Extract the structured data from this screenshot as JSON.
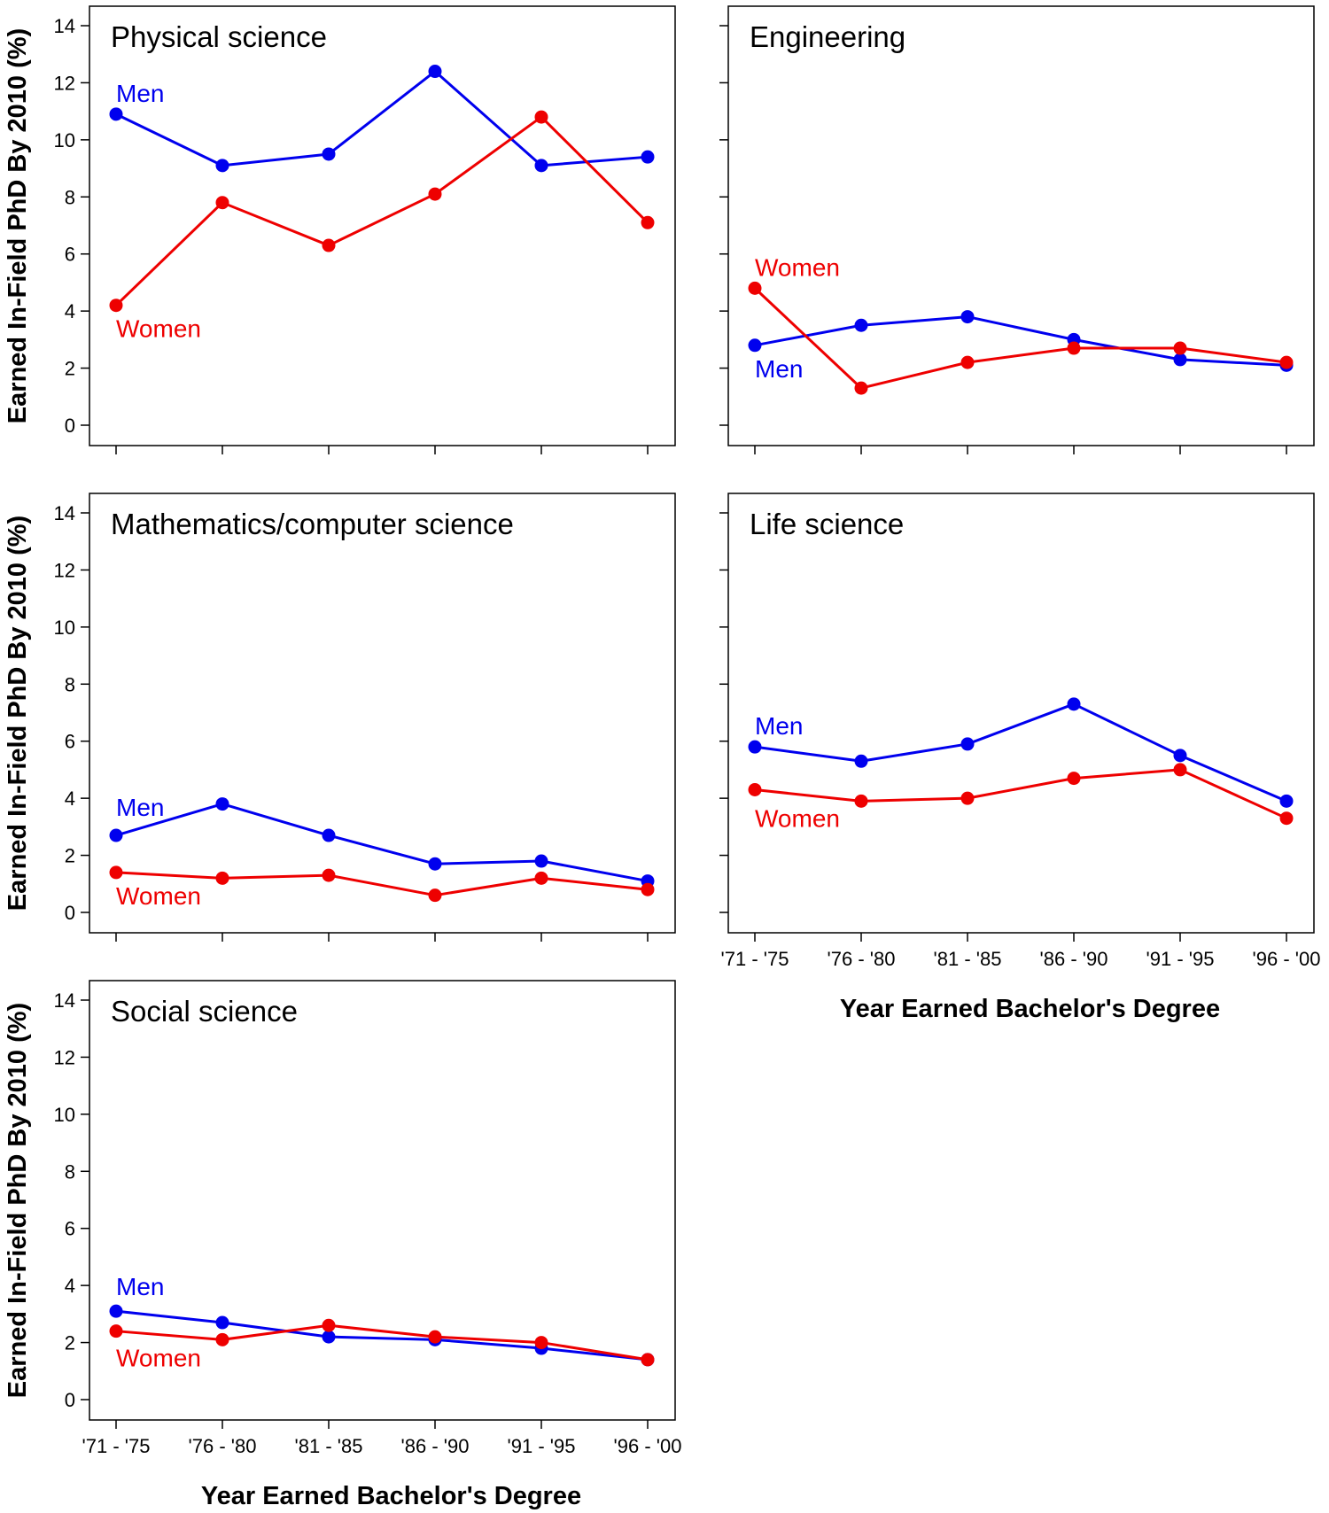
{
  "colors": {
    "men": "#0000ee",
    "women": "#ee0000",
    "axis": "#000000"
  },
  "chart_data": [
    {
      "type": "line",
      "title": "Physical science",
      "categories": [
        "'71 - '75",
        "'76 - '80",
        "'81 - '85",
        "'86 - '90",
        "'91 - '95",
        "'96 - '00"
      ],
      "ylabel": "Earned In-Field PhD By 2010 (%)",
      "xlabel": "",
      "ylim": [
        0,
        14
      ],
      "yticks": [
        "0",
        "2",
        "4",
        "6",
        "8",
        "10",
        "12",
        "14"
      ],
      "show_x_tick_labels": false,
      "series": [
        {
          "name": "Men",
          "values": [
            10.9,
            9.1,
            9.5,
            12.4,
            9.1,
            9.4
          ]
        },
        {
          "name": "Women",
          "values": [
            4.2,
            7.8,
            6.3,
            8.1,
            10.8,
            7.1
          ]
        }
      ]
    },
    {
      "type": "line",
      "title": "Engineering",
      "categories": [
        "'71 - '75",
        "'76 - '80",
        "'81 - '85",
        "'86 - '90",
        "'91 - '95",
        "'96 - '00"
      ],
      "ylabel": "",
      "xlabel": "",
      "ylim": [
        0,
        14
      ],
      "yticks": [],
      "show_x_tick_labels": false,
      "series": [
        {
          "name": "Men",
          "values": [
            2.8,
            3.5,
            3.8,
            3.0,
            2.3,
            2.1
          ]
        },
        {
          "name": "Women",
          "values": [
            4.8,
            1.3,
            2.2,
            2.7,
            2.7,
            2.2
          ]
        }
      ]
    },
    {
      "type": "line",
      "title": "Mathematics/computer science",
      "categories": [
        "'71 - '75",
        "'76 - '80",
        "'81 - '85",
        "'86 - '90",
        "'91 - '95",
        "'96 - '00"
      ],
      "ylabel": "Earned In-Field PhD By 2010 (%)",
      "xlabel": "",
      "ylim": [
        0,
        14
      ],
      "yticks": [
        "0",
        "2",
        "4",
        "6",
        "8",
        "10",
        "12",
        "14"
      ],
      "show_x_tick_labels": false,
      "series": [
        {
          "name": "Men",
          "values": [
            2.7,
            3.8,
            2.7,
            1.7,
            1.8,
            1.1
          ]
        },
        {
          "name": "Women",
          "values": [
            1.4,
            1.2,
            1.3,
            0.6,
            1.2,
            0.8
          ]
        }
      ]
    },
    {
      "type": "line",
      "title": "Life science",
      "categories": [
        "'71 - '75",
        "'76 - '80",
        "'81 - '85",
        "'86 - '90",
        "'91 - '95",
        "'96 - '00"
      ],
      "ylabel": "",
      "xlabel": "Year Earned Bachelor's Degree",
      "ylim": [
        0,
        14
      ],
      "yticks": [],
      "show_x_tick_labels": true,
      "series": [
        {
          "name": "Men",
          "values": [
            5.8,
            5.3,
            5.9,
            7.3,
            5.5,
            3.9
          ]
        },
        {
          "name": "Women",
          "values": [
            4.3,
            3.9,
            4.0,
            4.7,
            5.0,
            3.3
          ]
        }
      ]
    },
    {
      "type": "line",
      "title": "Social science",
      "categories": [
        "'71 - '75",
        "'76 - '80",
        "'81 - '85",
        "'86 - '90",
        "'91 - '95",
        "'96 - '00"
      ],
      "ylabel": "Earned In-Field PhD By 2010 (%)",
      "xlabel": "Year Earned Bachelor's Degree",
      "ylim": [
        0,
        14
      ],
      "yticks": [
        "0",
        "2",
        "4",
        "6",
        "8",
        "10",
        "12",
        "14"
      ],
      "show_x_tick_labels": true,
      "series": [
        {
          "name": "Men",
          "values": [
            3.1,
            2.7,
            2.2,
            2.1,
            1.8,
            1.4
          ]
        },
        {
          "name": "Women",
          "values": [
            2.4,
            2.1,
            2.6,
            2.2,
            2.0,
            1.4
          ]
        }
      ]
    }
  ]
}
